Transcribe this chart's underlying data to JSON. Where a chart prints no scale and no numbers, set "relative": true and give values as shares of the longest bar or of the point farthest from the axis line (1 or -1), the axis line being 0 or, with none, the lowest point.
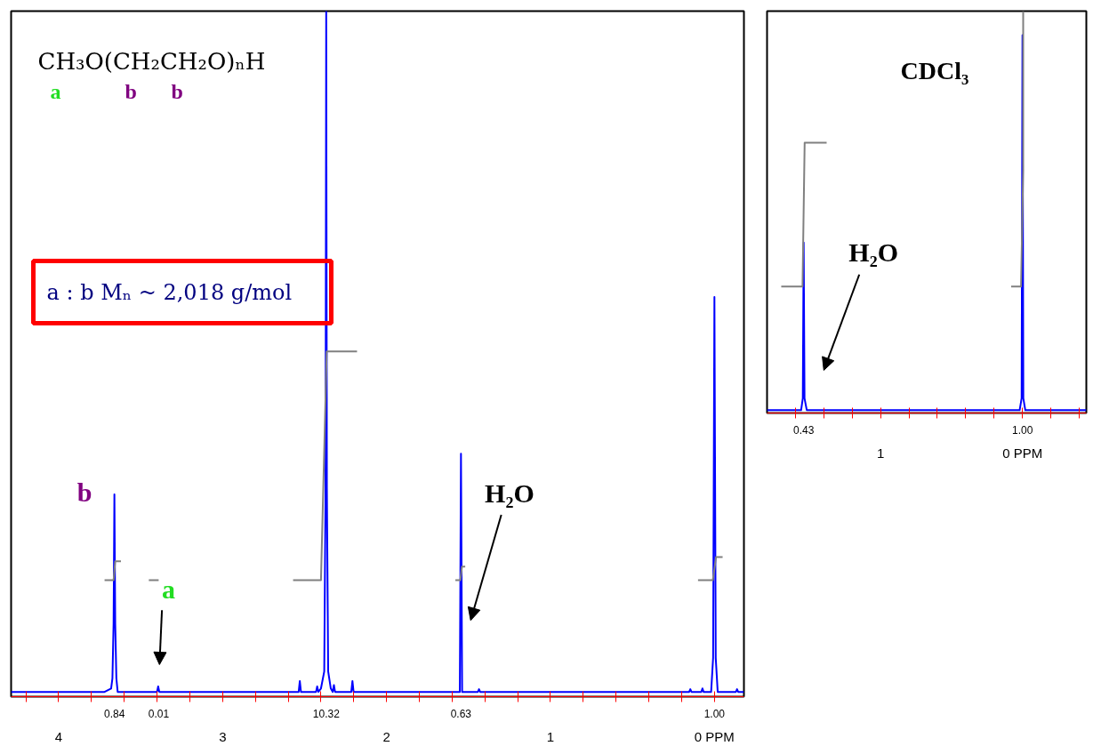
{
  "chart_data": [
    {
      "type": "line",
      "relative": true,
      "xlim": [
        4.29,
        -0.18
      ],
      "xticks": [
        {
          "value": 4.2,
          "label": null
        },
        4,
        {
          "value": 3.8,
          "label": null
        },
        {
          "value": 3.6,
          "label": null
        },
        {
          "value": 3.4,
          "label": null
        },
        {
          "value": 3.2,
          "label": null
        },
        3,
        {
          "value": 2.8,
          "label": null
        },
        {
          "value": 2.6,
          "label": null
        },
        {
          "value": 2.4,
          "label": null
        },
        {
          "value": 2.2,
          "label": null
        },
        2,
        {
          "value": 1.8,
          "label": null
        },
        {
          "value": 1.6,
          "label": null
        },
        {
          "value": 1.4,
          "label": null
        },
        {
          "value": 1.2,
          "label": null
        },
        1,
        {
          "value": 0.8,
          "label": null
        },
        {
          "value": 0.6,
          "label": null
        },
        {
          "value": 0.4,
          "label": null
        },
        {
          "value": 0.2,
          "label": null
        },
        {
          "value": 0,
          "label": "0 PPM"
        }
      ],
      "series": [
        {
          "color": "#0000ff",
          "x": [
            4.29,
            3.72,
            3.68,
            3.672,
            3.665,
            3.66,
            3.655,
            3.648,
            3.64,
            3.4,
            3.393,
            3.386,
            2.536,
            2.529,
            2.522,
            2.43,
            2.423,
            2.416,
            2.4,
            2.38,
            2.372,
            2.368,
            2.364,
            2.356,
            2.34,
            2.328,
            2.321,
            2.314,
            2.215,
            2.208,
            2.201,
            1.553,
            1.546,
            1.539,
            1.443,
            1.436,
            1.429,
            0.154,
            0.147,
            0.14,
            0.08,
            0.073,
            0.066,
            0.02,
            0.008,
            0.0,
            -0.008,
            -0.02,
            -0.131,
            -0.138,
            -0.145,
            -0.18
          ],
          "values": [
            0,
            0,
            0.005,
            0.02,
            0.1,
            0.29,
            0.1,
            0.02,
            0,
            0,
            0.008,
            0,
            0,
            0.016,
            0,
            0,
            0.008,
            0,
            0.005,
            0.03,
            0.3,
            1,
            0.3,
            0.03,
            0.005,
            0,
            0.01,
            0,
            0,
            0.016,
            0,
            0,
            0.35,
            0,
            0,
            0.004,
            0,
            0,
            0.004,
            0,
            0,
            0.005,
            0,
            0,
            0.05,
            0.58,
            0.05,
            0,
            0,
            0.004,
            0,
            0
          ]
        },
        {
          "color": "#808080",
          "x": [
            3.72,
            3.665,
            3.655,
            3.62
          ],
          "values": [
            0.164,
            0.164,
            0.192,
            0.192
          ]
        },
        {
          "color": "#808080",
          "x": [
            3.45,
            3.39
          ],
          "values": [
            0.164,
            0.164
          ]
        },
        {
          "color": "#808080",
          "x": [
            2.57,
            2.4,
            2.365,
            2.18
          ],
          "values": [
            0.164,
            0.164,
            0.5,
            0.5
          ]
        },
        {
          "color": "#808080",
          "x": [
            1.58,
            1.55,
            1.54,
            1.52
          ],
          "values": [
            0.164,
            0.164,
            0.184,
            0.184
          ]
        },
        {
          "color": "#808080",
          "x": [
            0.1,
            0.01,
            -0.01,
            -0.05
          ],
          "values": [
            0.164,
            0.164,
            0.198,
            0.198
          ]
        }
      ],
      "annotations": [
        "CH₃O(CH₂CH₂O)ₙH",
        "a",
        "b",
        "b",
        "a : b   Mₙ ~ 2,018 g/mol",
        "b",
        "a",
        "H₂O",
        "0.84",
        "0.01",
        "10.32",
        "0.63",
        "1.00"
      ]
    },
    {
      "type": "line",
      "relative": true,
      "xlim": [
        1.8,
        -0.45
      ],
      "xticks": [
        {
          "value": 1.6,
          "label": null
        },
        {
          "value": 1.4,
          "label": null
        },
        {
          "value": 1.2,
          "label": null
        },
        1,
        {
          "value": 0.8,
          "label": null
        },
        {
          "value": 0.6,
          "label": null
        },
        {
          "value": 0.4,
          "label": null
        },
        {
          "value": 0.2,
          "label": null
        },
        {
          "value": 0,
          "label": "0 PPM"
        },
        {
          "value": -0.2,
          "label": null
        },
        {
          "value": -0.4,
          "label": null
        }
      ],
      "series": [
        {
          "color": "#0000ff",
          "x": [
            1.8,
            1.56,
            1.548,
            1.542,
            1.536,
            1.52,
            0.02,
            0.006,
            0.0,
            -0.006,
            -0.02,
            -0.45
          ],
          "values": [
            0,
            0,
            0.03,
            0.42,
            0.03,
            0,
            0,
            0.03,
            0.94,
            0.03,
            0,
            0
          ]
        },
        {
          "color": "#808080",
          "x": [
            1.7,
            1.55,
            1.535,
            1.38
          ],
          "values": [
            0.31,
            0.31,
            0.67,
            0.67
          ]
        },
        {
          "color": "#808080",
          "x": [
            0.08,
            0.01,
            -0.005,
            -0.005
          ],
          "values": [
            0.31,
            0.31,
            0.6,
            1.0
          ]
        }
      ],
      "annotations": [
        "CDCl₃",
        "H₂O",
        "0.43",
        "1.00"
      ]
    }
  ]
}
